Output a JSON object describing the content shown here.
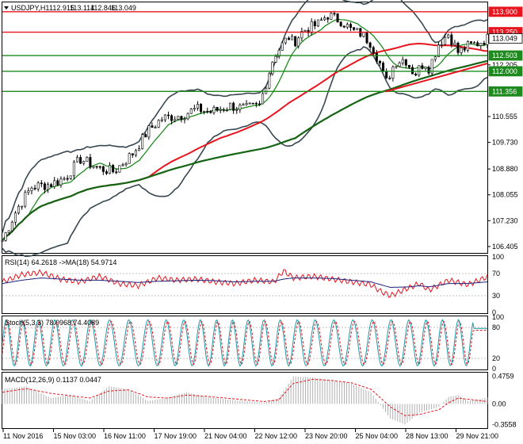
{
  "chart_data": [
    {
      "type": "candlestick",
      "panel": "price",
      "title": "USDJPY,H1",
      "ohlc": {
        "open": "112.915",
        "high": "113.114",
        "low": "112.846",
        "close": "113.049"
      },
      "y_ticks": [
        "113.900",
        "113.250",
        "113.049",
        "112.503",
        "112.205",
        "112.000",
        "111.356",
        "110.555",
        "109.730",
        "108.880",
        "108.055",
        "107.230",
        "106.405"
      ],
      "ylim": [
        106.2,
        114.2
      ],
      "horizontal_levels": [
        {
          "value": 113.9,
          "label": "113.900",
          "color": "#e8141e"
        },
        {
          "value": 113.25,
          "label": "113.250",
          "color": "#e8141e"
        },
        {
          "value": 112.503,
          "label": "112.503",
          "color": "#1e8a1e"
        },
        {
          "value": 112.0,
          "label": "112.000",
          "color": "#1e8a1e"
        },
        {
          "value": 111.356,
          "label": "111.356",
          "color": "#1e8a1e"
        }
      ],
      "current_price": {
        "value": 113.049,
        "label": "113.049",
        "color": "#000000"
      },
      "trendline": {
        "from": [
          0.79,
          111.35
        ],
        "to": [
          1.0,
          112.25
        ],
        "color": "#e8141e"
      },
      "price_path_x": [
        0,
        0.03,
        0.06,
        0.1,
        0.13,
        0.16,
        0.2,
        0.23,
        0.27,
        0.3,
        0.33,
        0.37,
        0.4,
        0.43,
        0.47,
        0.5,
        0.53,
        0.56,
        0.59,
        0.6,
        0.62,
        0.65,
        0.67,
        0.7,
        0.72,
        0.74,
        0.76,
        0.78,
        0.79,
        0.81,
        0.83,
        0.85,
        0.87,
        0.88,
        0.9,
        0.92,
        0.93,
        0.94,
        0.96,
        0.98,
        1.0
      ],
      "price_path_y": [
        106.6,
        107.6,
        108.3,
        108.4,
        108.6,
        109.2,
        108.9,
        108.8,
        109.4,
        110.1,
        110.5,
        110.6,
        110.8,
        110.7,
        110.9,
        110.8,
        110.9,
        112.5,
        113.1,
        112.9,
        113.3,
        113.5,
        113.8,
        113.6,
        113.3,
        113.2,
        112.9,
        112.2,
        111.6,
        112.3,
        112.4,
        111.9,
        112.3,
        112.1,
        112.9,
        113.2,
        112.9,
        112.6,
        112.8,
        112.9,
        113.05
      ],
      "moving_average_colors": {
        "upper_band": "#37474f",
        "ma_fast": "#1e8a1e",
        "ma_slow": "#e8141e",
        "ma_long": "#146414"
      }
    },
    {
      "type": "line",
      "panel": "rsi",
      "title": "RSI(14) 64.2618 ->MA(18) 54.9714",
      "y_ticks": [
        "100",
        "70",
        "30",
        "0"
      ],
      "ylim": [
        0,
        100
      ],
      "series_colors": {
        "rsi": "#e8141e",
        "ma": "#1a237e"
      },
      "rsi_x": [
        0,
        0.04,
        0.08,
        0.12,
        0.16,
        0.2,
        0.24,
        0.28,
        0.32,
        0.36,
        0.4,
        0.44,
        0.48,
        0.52,
        0.56,
        0.58,
        0.6,
        0.64,
        0.68,
        0.72,
        0.76,
        0.78,
        0.8,
        0.84,
        0.86,
        0.88,
        0.92,
        0.96,
        1.0
      ],
      "rsi_y": [
        55,
        68,
        72,
        60,
        55,
        65,
        52,
        48,
        62,
        58,
        60,
        55,
        52,
        58,
        55,
        75,
        62,
        65,
        60,
        55,
        50,
        38,
        30,
        45,
        52,
        40,
        58,
        50,
        64
      ],
      "ma_y": [
        52,
        58,
        62,
        60,
        58,
        58,
        56,
        54,
        56,
        57,
        58,
        57,
        55,
        56,
        56,
        60,
        62,
        62,
        61,
        58,
        55,
        50,
        45,
        46,
        48,
        46,
        52,
        52,
        55
      ]
    },
    {
      "type": "line",
      "panel": "stochastic",
      "title": "Stoch(5,3,3) 78.0968 74.4089",
      "y_ticks": [
        "100",
        "80",
        "20",
        "0"
      ],
      "ylim": [
        0,
        100
      ],
      "series_colors": {
        "k": "#1a9ba8",
        "d": "#e8141e"
      },
      "cycles": 28,
      "last_values": [
        78.0968,
        74.4089
      ]
    },
    {
      "type": "bar",
      "panel": "macd",
      "title": "MACD(12,26,9) 0.1137 0.0447",
      "y_ticks": [
        "0.4759",
        "0.00",
        "-0.3558"
      ],
      "ylim": [
        -0.4,
        0.52
      ],
      "series_colors": {
        "histogram": "#b0b0b0",
        "signal": "#e8141e"
      },
      "hist_x": [
        0,
        0.05,
        0.1,
        0.14,
        0.18,
        0.22,
        0.26,
        0.3,
        0.34,
        0.38,
        0.42,
        0.46,
        0.5,
        0.54,
        0.57,
        0.6,
        0.64,
        0.68,
        0.72,
        0.76,
        0.8,
        0.83,
        0.86,
        0.9,
        0.92,
        0.94,
        0.96,
        1.0
      ],
      "hist_y": [
        0.25,
        0.3,
        0.1,
        0.15,
        0.05,
        0.3,
        0.25,
        0.05,
        0.1,
        0.2,
        0.12,
        0.08,
        0.05,
        0.02,
        0.1,
        0.47,
        0.45,
        0.4,
        0.35,
        0.2,
        -0.25,
        -0.35,
        -0.15,
        -0.05,
        0.12,
        0.15,
        0.05,
        0.11
      ],
      "signal_y": [
        0.2,
        0.26,
        0.18,
        0.14,
        0.1,
        0.22,
        0.24,
        0.12,
        0.1,
        0.15,
        0.13,
        0.1,
        0.07,
        0.04,
        0.07,
        0.35,
        0.42,
        0.4,
        0.36,
        0.25,
        -0.05,
        -0.2,
        -0.18,
        -0.1,
        0.02,
        0.1,
        0.08,
        0.04
      ]
    }
  ],
  "time_axis": [
    "11 Nov 2016",
    "15 Nov 03:00",
    "16 Nov 11:00",
    "17 Nov 19:00",
    "21 Nov 04:00",
    "22 Nov 12:00",
    "23 Nov 20:00",
    "25 Nov 04:00",
    "28 Nov 13:00",
    "29 Nov 21:00"
  ]
}
